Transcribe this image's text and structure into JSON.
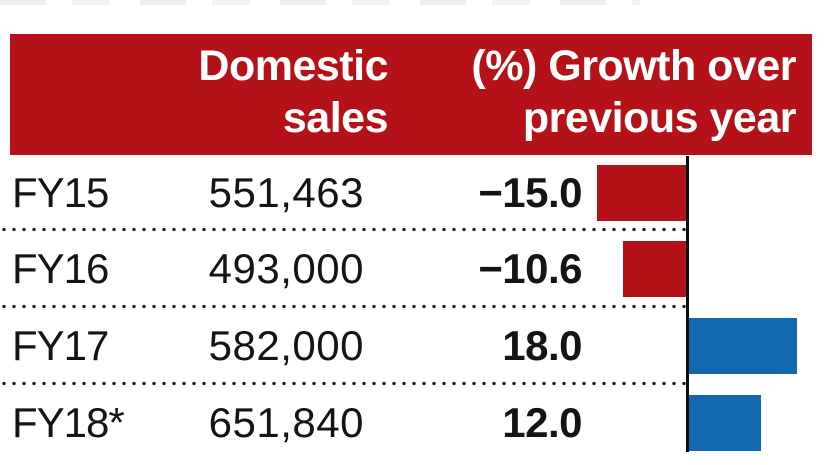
{
  "table": {
    "header": {
      "sales_line1": "Domestic",
      "sales_line2": "sales",
      "growth_line1": "(%) Growth over",
      "growth_line2": "previous year"
    },
    "rows": [
      {
        "label": "FY15",
        "sales": "551,463",
        "growth_display": "−15.0",
        "growth": -15.0
      },
      {
        "label": "FY16",
        "sales": "493,000",
        "growth_display": "−10.6",
        "growth": -10.6
      },
      {
        "label": "FY17",
        "sales": "582,000",
        "growth_display": "18.0",
        "growth": 18.0
      },
      {
        "label": "FY18*",
        "sales": "651,840",
        "growth_display": "12.0",
        "growth": 12.0
      }
    ]
  },
  "colors": {
    "header_red": "#b41118",
    "bar_negative": "#b41118",
    "bar_positive": "#1269b0",
    "axis_black": "#0c0c0c",
    "header_text": "#ffffff",
    "body_text": "#141414"
  },
  "chart_data": {
    "type": "bar",
    "orientation": "horizontal",
    "categories": [
      "FY15",
      "FY16",
      "FY17",
      "FY18*"
    ],
    "series": [
      {
        "name": "Domestic sales",
        "values": [
          551463,
          493000,
          582000,
          651840
        ]
      },
      {
        "name": "(%) Growth over previous year",
        "values": [
          -15.0,
          -10.6,
          18.0,
          12.0
        ]
      }
    ],
    "title": "",
    "xlabel": "(%) Growth over previous year",
    "ylabel": "",
    "xlim": [
      -20,
      20
    ],
    "grid": false,
    "legend_position": "none",
    "notes": "Negative growth bars drawn red extending left of zero axis; positive growth bars drawn blue extending right. Dotted separators between rows. FY18* value marked with asterisk."
  }
}
